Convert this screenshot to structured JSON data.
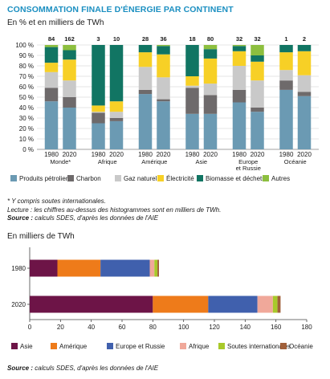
{
  "title": "CONSOMMATION FINALE D'ÉNERGIE PAR CONTINENT",
  "subtitle": "En % et en milliers de TWh",
  "notes": {
    "line1": "* Y compris soutes internationales.",
    "line2": "Lecture : les chiffres au-dessus des histogrammes sont en milliers de TWh.",
    "source_label": "Source :",
    "source_text": " calculs SDES, d'après les données de l'AIE"
  },
  "subtitle2": "En milliers de TWh",
  "source2": {
    "label": "Source :",
    "text": " calculs SDES, d'après les données de l'AIE"
  },
  "colors": {
    "Produits pétroliers": "#6b9ab3",
    "Charbon": "#6e6a6b",
    "Gaz naturel": "#c9c9c9",
    "Électricité": "#f7d026",
    "Biomasse et déchets": "#117563",
    "Autres": "#8dbf3f"
  },
  "chart_data": [
    {
      "type": "bar",
      "stacked": true,
      "percent": true,
      "ylim": [
        0,
        100
      ],
      "yticks": [
        "0 %",
        "10 %",
        "20 %",
        "30 %",
        "40 %",
        "50 %",
        "60 %",
        "70 %",
        "80 %",
        "90 %",
        "100 %"
      ],
      "grid": true,
      "legend_position": "bottom",
      "groups": [
        {
          "name": "Monde*",
          "bars": [
            {
              "year": "1980",
              "total": "84",
              "values": [
                46,
                13,
                15,
                9,
                15,
                2
              ]
            },
            {
              "year": "2020",
              "total": "162",
              "values": [
                40,
                10,
                16,
                20,
                9,
                5
              ]
            }
          ]
        },
        {
          "name": "Afrique",
          "bars": [
            {
              "year": "1980",
              "total": "3",
              "values": [
                25,
                10,
                1,
                6,
                58,
                0
              ]
            },
            {
              "year": "2020",
              "total": "10",
              "values": [
                27,
                3,
                6,
                10,
                54,
                0
              ]
            }
          ]
        },
        {
          "name": "Amérique",
          "bars": [
            {
              "year": "1980",
              "total": "28",
              "values": [
                53,
                4,
                22,
                14,
                7,
                0
              ]
            },
            {
              "year": "2020",
              "total": "36",
              "values": [
                46,
                2,
                21,
                22,
                8,
                1
              ]
            }
          ]
        },
        {
          "name": "Asie",
          "bars": [
            {
              "year": "1980",
              "total": "18",
              "values": [
                34,
                25,
                2,
                9,
                30,
                0
              ]
            },
            {
              "year": "2020",
              "total": "80",
              "values": [
                34,
                18,
                11,
                24,
                9,
                4
              ]
            }
          ]
        },
        {
          "name": "Europe\net Russie",
          "bars": [
            {
              "year": "1980",
              "total": "32",
              "values": [
                45,
                12,
                23,
                14,
                5,
                1
              ]
            },
            {
              "year": "2020",
              "total": "32",
              "values": [
                36,
                4,
                26,
                18,
                6,
                10
              ]
            }
          ]
        },
        {
          "name": "Océanie",
          "bars": [
            {
              "year": "1980",
              "total": "1",
              "values": [
                57,
                9,
                10,
                17,
                7,
                0
              ]
            },
            {
              "year": "2020",
              "total": "2",
              "values": [
                51,
                4,
                16,
                23,
                6,
                0
              ]
            }
          ]
        }
      ],
      "series": [
        "Produits pétroliers",
        "Charbon",
        "Gaz naturel",
        "Électricité",
        "Biomasse et déchets",
        "Autres"
      ]
    },
    {
      "type": "bar",
      "orientation": "horizontal",
      "stacked": true,
      "xlim": [
        0,
        180
      ],
      "xticks": [
        "0",
        "20",
        "40",
        "60",
        "80",
        "100",
        "120",
        "140",
        "160",
        "180"
      ],
      "categories": [
        "1980",
        "2020"
      ],
      "series": [
        {
          "name": "Asie",
          "color": "#6d1447",
          "values": [
            18,
            80
          ]
        },
        {
          "name": "Amérique",
          "color": "#ee7b1a",
          "values": [
            28,
            36
          ]
        },
        {
          "name": "Europe et Russie",
          "color": "#4060ad",
          "values": [
            32,
            32
          ]
        },
        {
          "name": "Afrique",
          "color": "#f0a89a",
          "values": [
            3,
            10
          ]
        },
        {
          "name": "Soutes internationales",
          "color": "#a8c92a",
          "values": [
            2,
            3
          ]
        },
        {
          "name": "Océanie",
          "color": "#a0603a",
          "values": [
            1,
            2
          ]
        }
      ],
      "legend_position": "bottom"
    }
  ]
}
